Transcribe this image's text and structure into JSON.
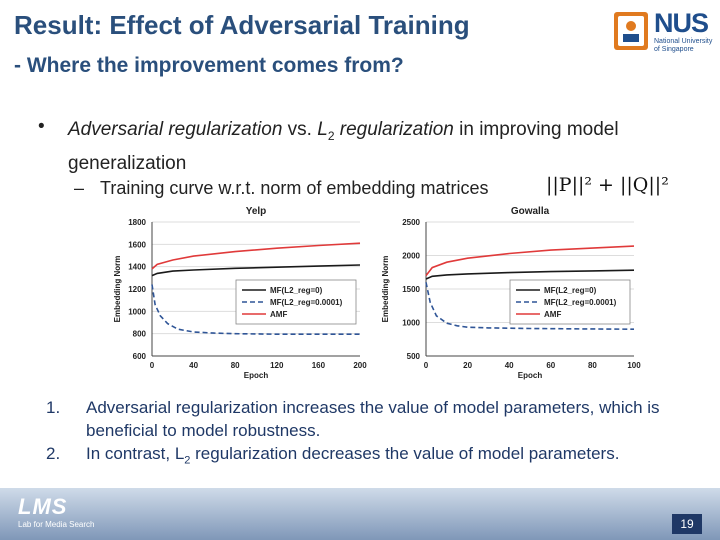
{
  "title": "Result: Effect of Adversarial Training",
  "subtitle": "- Where the improvement comes from?",
  "logo": {
    "text": "NUS",
    "sub": "National University of Singapore"
  },
  "bullet": {
    "marker": "•",
    "pre": "Adversarial regularization",
    "mid": " vs. ",
    "l2": "L",
    "sub2": "2",
    "post": " regularization",
    "tail": " in improving model generalization"
  },
  "sub_bullet": {
    "marker": "–",
    "text": "Training curve w.r.t. norm of embedding matrices",
    "formula": "||P||² + ||Q||²"
  },
  "list": [
    {
      "num": "1.",
      "text": "Adversarial regularization increases  the  value  of model parameters, which is beneficial to model robustness."
    },
    {
      "num": "2.",
      "pre": "In contrast, L",
      "sub": "2",
      "post": " regularization decreases the  value  of  model parameters."
    }
  ],
  "footer": {
    "logo": "LMS",
    "sub": "Lab for Media Search",
    "page": "19"
  },
  "chart_data": [
    {
      "type": "line",
      "title": "Yelp",
      "xlabel": "Epoch",
      "ylabel": "Embedding Norm",
      "xlim": [
        0,
        200
      ],
      "ylim": [
        600,
        1800
      ],
      "xticks": [
        0,
        40,
        80,
        120,
        160,
        200
      ],
      "yticks": [
        600,
        800,
        1000,
        1200,
        1400,
        1600,
        1800
      ],
      "legend_position": "bottom-right",
      "series": [
        {
          "name": "MF(L2_reg=0)",
          "color": "#1a1a1a",
          "dash": "solid",
          "x": [
            0,
            5,
            20,
            40,
            80,
            120,
            160,
            200
          ],
          "y": [
            1320,
            1340,
            1360,
            1370,
            1385,
            1395,
            1405,
            1415
          ]
        },
        {
          "name": "MF(L2_reg=0.0001)",
          "color": "#2f5597",
          "dash": "dashed",
          "x": [
            0,
            3,
            8,
            15,
            25,
            40,
            60,
            80,
            120,
            160,
            200
          ],
          "y": [
            1240,
            1060,
            960,
            890,
            840,
            815,
            805,
            800,
            795,
            795,
            795
          ]
        },
        {
          "name": "AMF",
          "color": "#e03a3a",
          "dash": "solid",
          "x": [
            0,
            5,
            20,
            40,
            80,
            120,
            160,
            200
          ],
          "y": [
            1380,
            1420,
            1460,
            1495,
            1535,
            1565,
            1590,
            1610
          ]
        }
      ]
    },
    {
      "type": "line",
      "title": "Gowalla",
      "xlabel": "Epoch",
      "ylabel": "Embedding Norm",
      "xlim": [
        0,
        100
      ],
      "ylim": [
        500,
        2500
      ],
      "xticks": [
        0,
        20,
        40,
        60,
        80,
        100
      ],
      "yticks": [
        500,
        1000,
        1500,
        2000,
        2500
      ],
      "legend_position": "bottom-right",
      "series": [
        {
          "name": "MF(L2_reg=0)",
          "color": "#1a1a1a",
          "dash": "solid",
          "x": [
            0,
            3,
            10,
            20,
            40,
            60,
            80,
            100
          ],
          "y": [
            1650,
            1690,
            1710,
            1725,
            1745,
            1760,
            1770,
            1780
          ]
        },
        {
          "name": "MF(L2_reg=0.0001)",
          "color": "#2f5597",
          "dash": "dashed",
          "x": [
            0,
            2,
            5,
            10,
            15,
            20,
            30,
            50,
            75,
            100
          ],
          "y": [
            1600,
            1300,
            1100,
            990,
            950,
            930,
            920,
            910,
            905,
            900
          ]
        },
        {
          "name": "AMF",
          "color": "#e03a3a",
          "dash": "solid",
          "x": [
            0,
            3,
            10,
            20,
            40,
            60,
            80,
            100
          ],
          "y": [
            1700,
            1820,
            1900,
            1960,
            2030,
            2080,
            2110,
            2140
          ]
        }
      ]
    }
  ]
}
